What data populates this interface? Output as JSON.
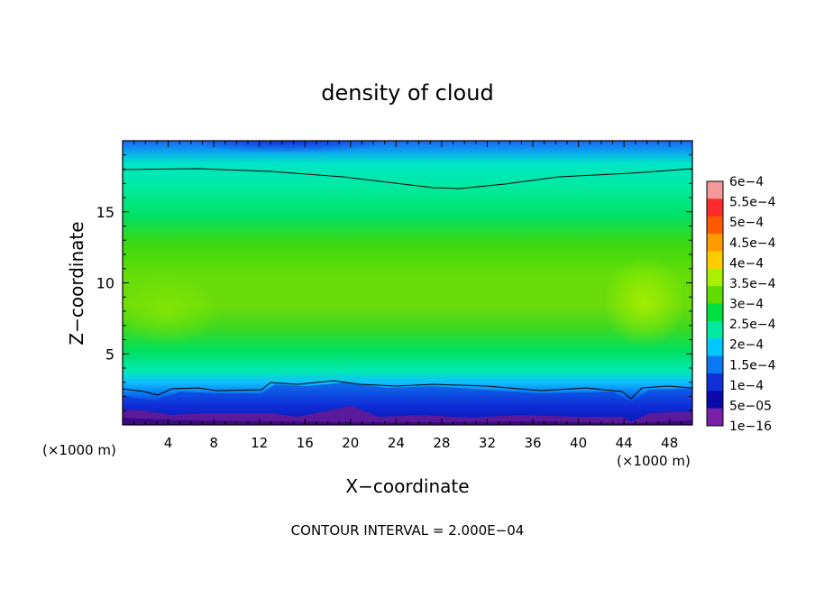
{
  "chart_data": {
    "type": "heatmap",
    "title": "density of cloud",
    "xlabel": "X−coordinate",
    "ylabel": "Z−coordinate",
    "x_unit_left": "(×1000 m)",
    "x_unit_right": "(×1000 m)",
    "footer": "CONTOUR INTERVAL = 2.000E−04",
    "xlim": [
      0,
      50
    ],
    "ylim": [
      0,
      20
    ],
    "x_ticks": [
      4,
      8,
      12,
      16,
      20,
      24,
      28,
      32,
      36,
      40,
      44,
      48
    ],
    "x_tick_labels": [
      "4",
      "8",
      "12",
      "16",
      "20",
      "24",
      "28",
      "32",
      "36",
      "40",
      "44",
      "48"
    ],
    "y_ticks": [
      5,
      10,
      15
    ],
    "y_tick_labels": [
      "5",
      "10",
      "15"
    ],
    "colorbar": {
      "labels": [
        "6e−4",
        "5.5e−4",
        "5e−4",
        "4.5e−4",
        "4e−4",
        "3.5e−4",
        "3e−4",
        "2.5e−4",
        "2e−4",
        "1.5e−4",
        "1e−4",
        "5e−05",
        "1e−16"
      ],
      "values": [
        0.0006,
        0.00055,
        0.0005,
        0.00045,
        0.0004,
        0.00035,
        0.0003,
        0.00025,
        0.0002,
        0.00015,
        0.0001,
        5e-05,
        1e-16
      ],
      "colors": [
        "#f49a9a",
        "#ff2a2a",
        "#ff5a00",
        "#ff9a00",
        "#ffcc00",
        "#aaf000",
        "#5fdc00",
        "#00e040",
        "#00eaa0",
        "#00c8ff",
        "#0a78f0",
        "#1030d8",
        "#0a0aa8",
        "#7a1fa8"
      ]
    },
    "contour_levels": [
      0.0002
    ],
    "field_profile": {
      "z": [
        0,
        0.5,
        1,
        1.5,
        2,
        2.5,
        3,
        4,
        5,
        6,
        7,
        8,
        9,
        10,
        11,
        12,
        13,
        14,
        15,
        16,
        17,
        17.5,
        18,
        18.5,
        19,
        19.5,
        20
      ],
      "density": [
        0,
        2e-05,
        5e-05,
        9e-05,
        0.00014,
        0.00018,
        0.00021,
        0.00026,
        0.0003,
        0.00033,
        0.00035,
        0.00036,
        0.00036,
        0.00035,
        0.00034,
        0.00032,
        0.0003,
        0.00028,
        0.00026,
        0.00024,
        0.00022,
        0.00021,
        0.0002,
        0.00018,
        0.00016,
        0.00013,
        0.0001
      ]
    }
  }
}
